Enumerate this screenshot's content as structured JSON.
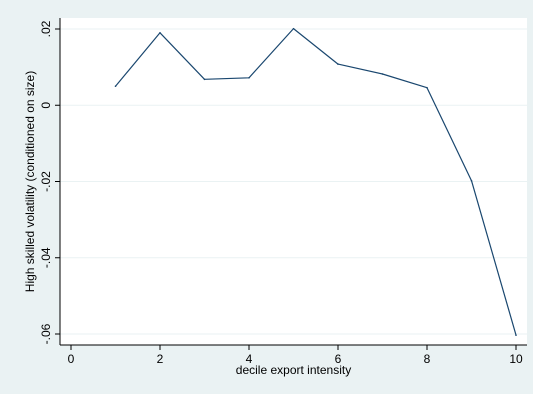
{
  "chart_data": {
    "type": "line",
    "title": "",
    "xlabel": "decile export intensity",
    "ylabel": "High skilled volatility (conditioned on size)",
    "xlim": [
      0,
      10
    ],
    "ylim": [
      -0.06,
      0.02
    ],
    "x_ticks": [
      0,
      2,
      4,
      6,
      8,
      10
    ],
    "x_tick_labels": [
      "0",
      "2",
      "4",
      "6",
      "8",
      "10"
    ],
    "y_ticks": [
      0.02,
      0,
      -0.02,
      -0.04,
      -0.06
    ],
    "y_tick_labels": [
      ".02",
      "0",
      "-.02",
      "-.04",
      "-.06"
    ],
    "grid": "horizontal",
    "series": [
      {
        "x": [
          1,
          2,
          3,
          4,
          5,
          6,
          7,
          8,
          9,
          10
        ],
        "values": [
          0.005,
          0.019,
          0.0068,
          0.0072,
          0.0201,
          0.0108,
          0.0082,
          0.0046,
          -0.0198,
          -0.0603
        ],
        "color": "#1a476f"
      }
    ],
    "colors": {
      "outer_background": "#eaf2f3",
      "plot_background": "#ffffff",
      "grid": "#eaf2f3"
    }
  }
}
